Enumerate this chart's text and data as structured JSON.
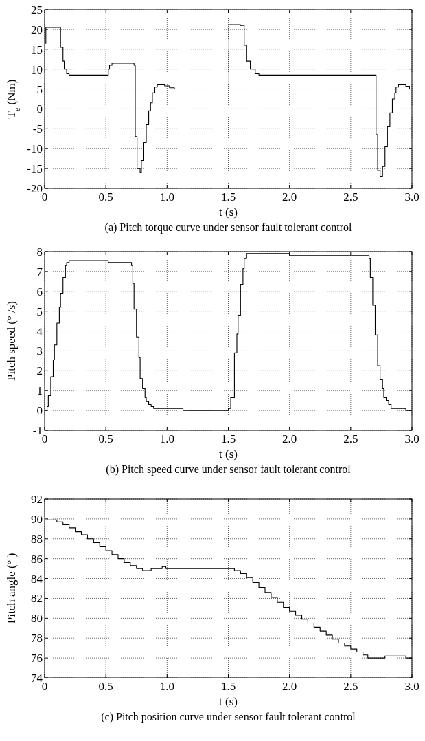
{
  "chart_data": [
    {
      "type": "step",
      "title": "(a)  Pitch torque curve under sensor fault tolerant control",
      "xlabel": "t (s)",
      "ylabel": "T$_{e}$ (Nm)",
      "xlim": [
        0,
        3
      ],
      "ylim": [
        -20,
        25
      ],
      "xticks": [
        0,
        0.5,
        {
          "value": 1,
          "label": "1.0"
        },
        1.5,
        {
          "value": 2,
          "label": "2.0"
        },
        2.5,
        {
          "value": 3,
          "label": "3.0"
        }
      ],
      "yticks": [
        -20,
        -15,
        -10,
        -5,
        0,
        5,
        10,
        15,
        20,
        25
      ],
      "grid": true,
      "series": [
        {
          "color": "#000000",
          "x": [
            0,
            0.01,
            0.13,
            0.15,
            0.16,
            0.18,
            0.2,
            0.52,
            0.53,
            0.55,
            0.73,
            0.74,
            0.755,
            0.78,
            0.79,
            0.81,
            0.83,
            0.85,
            0.865,
            0.88,
            0.9,
            0.92,
            0.98,
            1.02,
            1.06,
            1.505,
            1.6,
            1.63,
            1.65,
            1.68,
            1.72,
            1.75,
            2.707,
            2.72,
            2.74,
            2.76,
            2.78,
            2.8,
            2.82,
            2.84,
            2.86,
            2.87,
            2.89,
            2.95,
            2.98,
            3.0
          ],
          "values": [
            16.5,
            20.5,
            15.5,
            12,
            10,
            9,
            8.5,
            10,
            11,
            11.5,
            11,
            -7,
            -15,
            -16,
            -13,
            -8.5,
            -4,
            -0.5,
            1.5,
            4,
            5.5,
            6.2,
            5.8,
            5.3,
            5,
            21.2,
            21,
            16,
            12,
            10,
            9,
            8.5,
            -6.5,
            -15.5,
            -17,
            -14.5,
            -9.5,
            -4.5,
            -1,
            2.5,
            4,
            5.5,
            6.2,
            5.7,
            5,
            5
          ]
        }
      ]
    },
    {
      "type": "step",
      "title": "(b)  Pitch speed curve under sensor fault tolerant control",
      "xlabel": "t (s)",
      "ylabel": "Pitch speed (°  /s)",
      "xlim": [
        0,
        3
      ],
      "ylim": [
        -1,
        8
      ],
      "xticks": [
        0,
        0.5,
        {
          "value": 1,
          "label": "1.0"
        },
        1.5,
        {
          "value": 2,
          "label": "2.0"
        },
        2.5,
        {
          "value": 3,
          "label": "3.0"
        }
      ],
      "yticks": [
        -1,
        0,
        1,
        2,
        3,
        4,
        5,
        6,
        7,
        8
      ],
      "grid": true,
      "series": [
        {
          "color": "#000000",
          "x": [
            0,
            0.02,
            0.03,
            0.05,
            0.07,
            0.08,
            0.1,
            0.12,
            0.13,
            0.15,
            0.17,
            0.18,
            0.2,
            0.52,
            0.71,
            0.72,
            0.73,
            0.75,
            0.77,
            0.78,
            0.8,
            0.82,
            0.83,
            0.85,
            0.87,
            0.89,
            1.13,
            1.5,
            1.52,
            1.55,
            1.57,
            1.58,
            1.6,
            1.62,
            1.63,
            1.65,
            2.0,
            2.65,
            2.66,
            2.68,
            2.7,
            2.72,
            2.74,
            2.76,
            2.77,
            2.79,
            2.81,
            2.83,
            2.95,
            3.0
          ],
          "values": [
            0,
            0.2,
            0.75,
            1.7,
            2.55,
            3.3,
            4.4,
            5.2,
            5.9,
            6.7,
            7.3,
            7.45,
            7.55,
            7.45,
            7.3,
            6.4,
            5.1,
            3.7,
            2.65,
            1.6,
            1.1,
            0.65,
            0.45,
            0.3,
            0.2,
            0.1,
            0,
            0.1,
            0.65,
            2.9,
            3.85,
            4.8,
            6.35,
            7.15,
            7.65,
            7.9,
            7.8,
            7.65,
            6.7,
            5.3,
            3.8,
            2.25,
            1.55,
            1.1,
            0.65,
            0.5,
            0.3,
            0.1,
            0,
            0
          ]
        }
      ]
    },
    {
      "type": "step",
      "title": "(c)  Pitch position curve under sensor fault tolerant control",
      "xlabel": "t (s)",
      "ylabel": "Pitch angle (°  )",
      "xlim": [
        0,
        3
      ],
      "ylim": [
        74,
        92
      ],
      "xticks": [
        0,
        0.5,
        {
          "value": 1,
          "label": "1.0"
        },
        1.5,
        {
          "value": 2,
          "label": "2.0"
        },
        2.5,
        {
          "value": 3,
          "label": "3.0"
        }
      ],
      "yticks": [
        74,
        76,
        78,
        80,
        82,
        84,
        86,
        88,
        90,
        92
      ],
      "grid": true,
      "series": [
        {
          "color": "#000000",
          "x": [
            0,
            0.02,
            0.1,
            0.15,
            0.2,
            0.25,
            0.3,
            0.35,
            0.4,
            0.45,
            0.5,
            0.55,
            0.6,
            0.65,
            0.7,
            0.75,
            0.8,
            0.87,
            0.96,
            0.99,
            1.53,
            1.55,
            1.6,
            1.65,
            1.7,
            1.75,
            1.8,
            1.85,
            1.9,
            1.95,
            2.0,
            2.05,
            2.1,
            2.15,
            2.2,
            2.25,
            2.3,
            2.35,
            2.4,
            2.45,
            2.5,
            2.55,
            2.6,
            2.64,
            2.78,
            2.95,
            3.0
          ],
          "values": [
            90.1,
            89.9,
            89.7,
            89.4,
            89.1,
            88.7,
            88.4,
            88.0,
            87.6,
            87.2,
            86.8,
            86.4,
            86.0,
            85.6,
            85.3,
            85.0,
            84.8,
            85.0,
            85.2,
            85.0,
            85.0,
            84.8,
            84.5,
            84.1,
            83.6,
            83.1,
            82.6,
            82.1,
            81.6,
            81.1,
            80.7,
            80.3,
            79.9,
            79.5,
            79.1,
            78.7,
            78.3,
            77.9,
            77.5,
            77.2,
            76.9,
            76.6,
            76.3,
            76.0,
            76.2,
            76.0,
            76.0
          ]
        }
      ]
    }
  ]
}
